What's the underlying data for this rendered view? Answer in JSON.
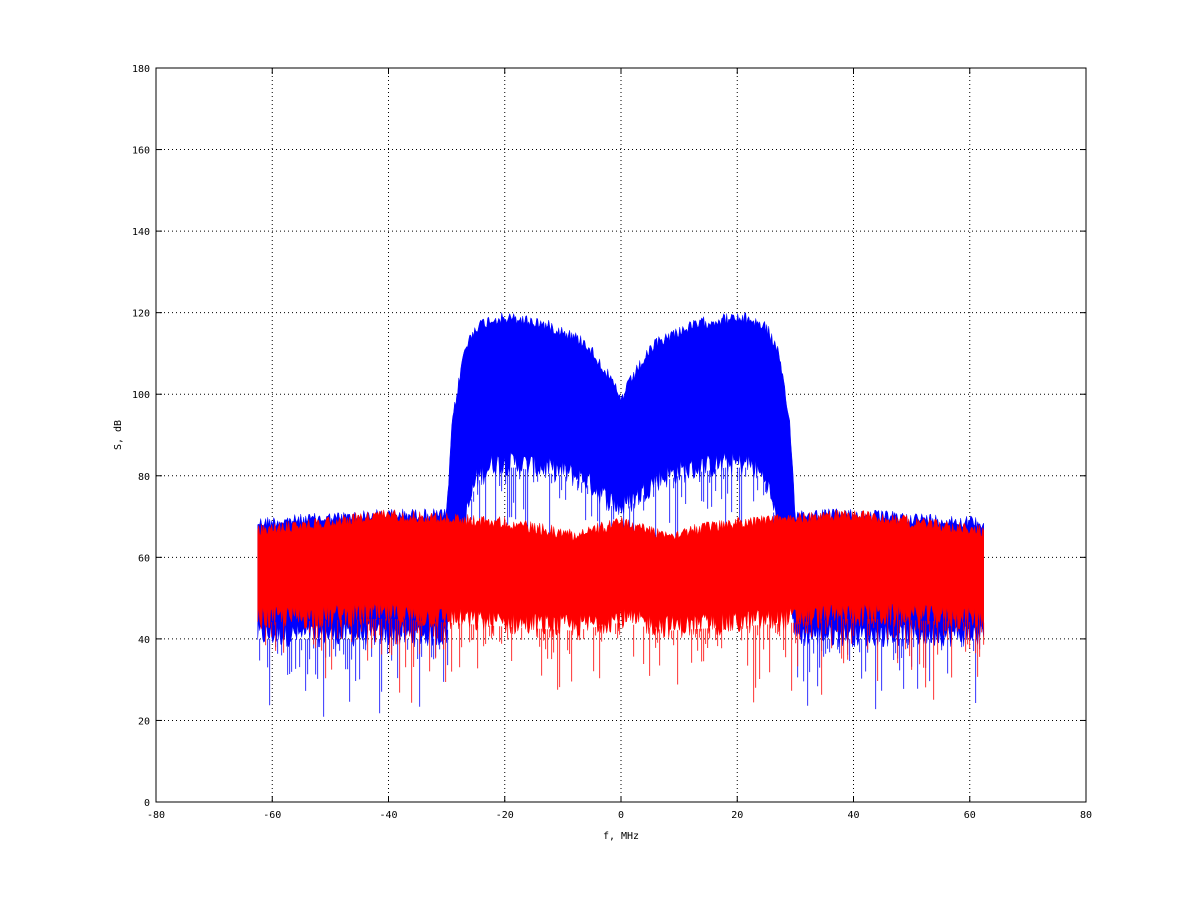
{
  "chart_data": {
    "type": "line",
    "title": "",
    "xlabel": "f, MHz",
    "ylabel": "S, dB",
    "xlim": [
      -80,
      80
    ],
    "ylim": [
      0,
      180
    ],
    "x_ticks": [
      -80,
      -60,
      -40,
      -20,
      0,
      20,
      40,
      60,
      80
    ],
    "y_ticks": [
      0,
      20,
      40,
      60,
      80,
      100,
      120,
      140,
      160,
      180
    ],
    "grid": true,
    "legend": "none",
    "x_range": [
      -62.5,
      62.5
    ],
    "series": [
      {
        "color": "#0000ff",
        "envelope_x": [
          -62.5,
          -40,
          -31,
          -30,
          -29,
          -27,
          -25,
          -22,
          -18,
          -14,
          -10,
          -6,
          -3,
          -1,
          0,
          1,
          3,
          6,
          10,
          14,
          18,
          22,
          25,
          27,
          29,
          30,
          31,
          40,
          62.5
        ],
        "envelope_upper": [
          70,
          72,
          72,
          72,
          95,
          112,
          118,
          120,
          120,
          119,
          117,
          114,
          108,
          103,
          100,
          103,
          108,
          114,
          117,
          119,
          120,
          120,
          118,
          112,
          95,
          72,
          72,
          72,
          70
        ],
        "envelope_lower": [
          38,
          38,
          38,
          38,
          50,
          65,
          76,
          80,
          80,
          79,
          78,
          76,
          72,
          70,
          69,
          70,
          72,
          76,
          78,
          79,
          80,
          80,
          76,
          65,
          50,
          38,
          38,
          38,
          38
        ]
      },
      {
        "color": "#ff0000",
        "envelope_x": [
          -62.5,
          -40,
          -20,
          -8,
          0,
          8,
          20,
          40,
          62.5
        ],
        "envelope_upper": [
          68,
          72,
          70,
          67,
          70,
          67,
          70,
          72,
          68
        ],
        "envelope_lower": [
          42,
          43,
          41,
          40,
          42,
          40,
          41,
          43,
          42
        ]
      }
    ]
  }
}
